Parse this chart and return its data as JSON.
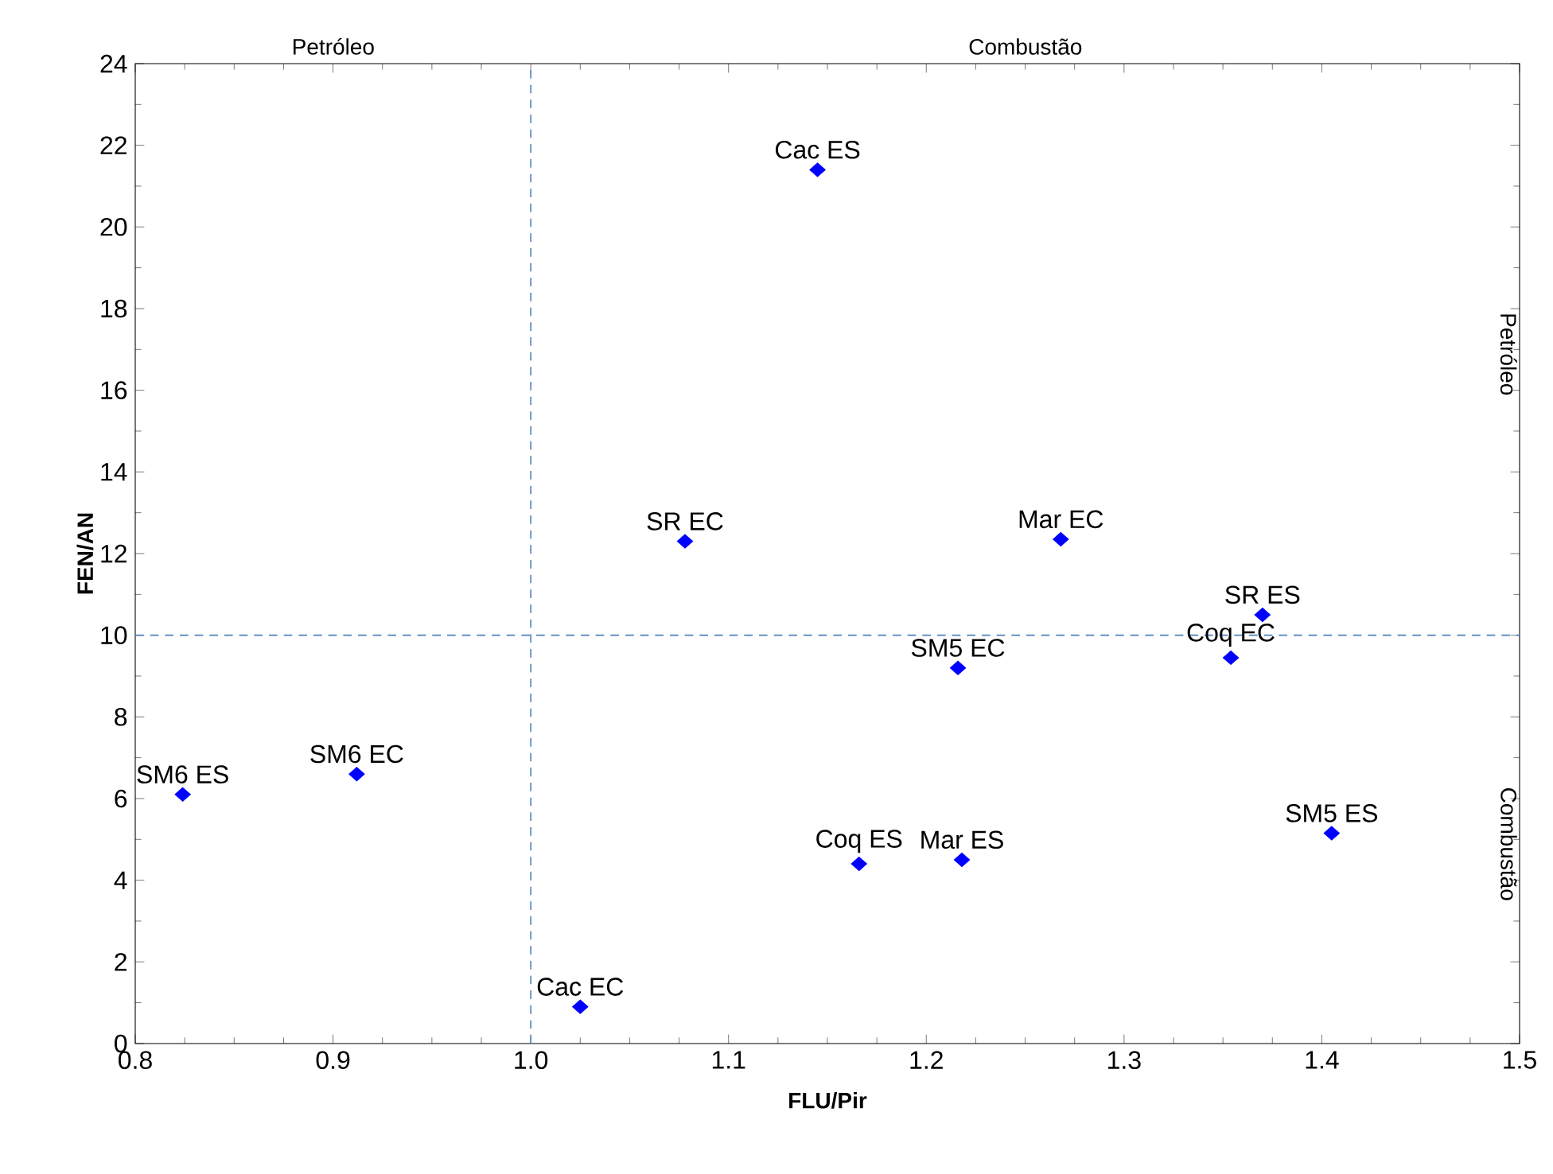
{
  "chart_data": {
    "type": "scatter",
    "xlabel": "FLU/Pir",
    "ylabel": "FEN/AN",
    "x": [
      0.824,
      0.912,
      1.025,
      1.078,
      1.145,
      1.166,
      1.216,
      1.218,
      1.268,
      1.354,
      1.37,
      1.405
    ],
    "series": [
      {
        "color": "#0000ff",
        "values": [
          6.1,
          6.6,
          0.9,
          12.3,
          21.4,
          4.4,
          9.2,
          4.5,
          12.35,
          9.45,
          10.5,
          5.15
        ]
      }
    ],
    "marker": "diamond",
    "grid": false,
    "xlim": [
      0.8,
      1.5
    ],
    "xticks": [
      {
        "value": 0.8,
        "label": "0.8"
      },
      {
        "value": 0.9,
        "label": "0.9"
      },
      {
        "value": 1.0,
        "label": "1.0"
      },
      {
        "value": 1.1,
        "label": "1.1"
      },
      {
        "value": 1.2,
        "label": "1.2"
      },
      {
        "value": 1.3,
        "label": "1.3"
      },
      {
        "value": 1.4,
        "label": "1.4"
      },
      {
        "value": 1.5,
        "label": "1.5"
      }
    ],
    "ylim": [
      0,
      24
    ],
    "yticks": [
      0,
      2,
      4,
      6,
      8,
      10,
      12,
      14,
      16,
      18,
      20,
      22,
      24
    ],
    "ref_lines": [
      {
        "axis": "x",
        "value": 1.0,
        "color": "#4f81bd",
        "line_style": "dashed"
      },
      {
        "axis": "y",
        "value": 10,
        "color": "#4f81bd",
        "line_style": "dashed"
      }
    ],
    "annotations": [
      "Petróleo",
      "Combustão",
      "Petróleo",
      "Combustão",
      {
        "text": "SM6 ES",
        "x": 0.824,
        "y": 6.1
      },
      {
        "text": "SM6 EC",
        "x": 0.912,
        "y": 6.6
      },
      {
        "text": "Cac EC",
        "x": 1.025,
        "y": 0.9
      },
      {
        "text": "SR EC",
        "x": 1.078,
        "y": 12.3
      },
      {
        "text": "Cac ES",
        "x": 1.145,
        "y": 21.4
      },
      {
        "text": "Coq ES",
        "x": 1.166,
        "y": 4.4
      },
      {
        "text": "SM5 EC",
        "x": 1.216,
        "y": 9.2
      },
      {
        "text": "Mar ES",
        "x": 1.218,
        "y": 4.5
      },
      {
        "text": "Mar EC",
        "x": 1.268,
        "y": 12.35
      },
      {
        "text": "Coq EC",
        "x": 1.354,
        "y": 9.45
      },
      {
        "text": "SR ES",
        "x": 1.37,
        "y": 10.5
      },
      {
        "text": "SM5 ES",
        "x": 1.405,
        "y": 5.15
      }
    ]
  }
}
